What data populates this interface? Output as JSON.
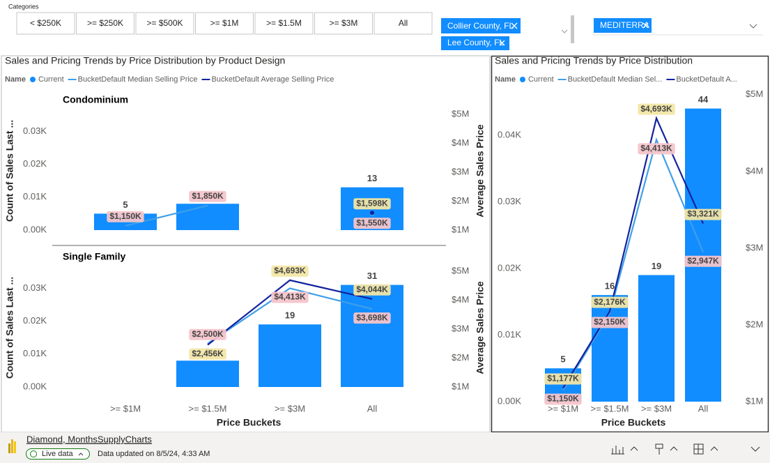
{
  "filters": {
    "label": "Categories",
    "buttons": [
      "< $250K",
      ">= $250K",
      ">= $500K",
      ">= $1M",
      ">= $1.5M",
      ">= $3M",
      "All"
    ]
  },
  "slicers": [
    {
      "chips": [
        "Collier County, FL",
        "Lee County, FL"
      ]
    },
    {
      "chips": [
        "MEDITERRA"
      ]
    }
  ],
  "footer": {
    "report": "Diamond, MonthsSupplyCharts",
    "status": "Live data",
    "updated": "Data updated on 8/5/24, 4:33 AM"
  },
  "chart_data": [
    {
      "type": "combo",
      "title": "Sales and Pricing Trends by Price Distribution by Product Design",
      "legend_title": "Name",
      "series": [
        {
          "name": "Current",
          "color": "#118DFF"
        },
        {
          "name": "BucketDefault Median Selling Price",
          "color": "#3F9FE8",
          "label_color": "#F4C5CB"
        },
        {
          "name": "BucketDefault Average Selling Price",
          "color": "#12239E",
          "label_color": "#F2E6A6"
        }
      ],
      "categories": [
        ">= $1M",
        ">= $1.5M",
        ">= $3M",
        "All"
      ],
      "xlabel": "Price Buckets",
      "ylabel": "Count of Sales Last ...",
      "y2label": "Average Sales Price",
      "panels": [
        {
          "title": "Condominium",
          "ylim": [
            0,
            36
          ],
          "yticks": [
            {
              "value": 0,
              "label": "0.00K"
            },
            {
              "value": 10,
              "label": "0.01K"
            },
            {
              "value": 20,
              "label": "0.02K"
            },
            {
              "value": 30,
              "label": "0.03K"
            }
          ],
          "y2lim": [
            1000000,
            5100000
          ],
          "y2ticks": [
            {
              "value": 1000000,
              "label": "$1M"
            },
            {
              "value": 2000000,
              "label": "$2M"
            },
            {
              "value": 3000000,
              "label": "$3M"
            },
            {
              "value": 4000000,
              "label": "$4M"
            },
            {
              "value": 5000000,
              "label": "$5M"
            }
          ],
          "series": [
            {
              "values": [
                5,
                8,
                null,
                13
              ]
            },
            {
              "values": [
                1150000,
                1850000,
                null,
                1550000
              ],
              "value_labels": [
                "$1,150K",
                "$1,850K",
                null,
                "$1,550K"
              ]
            },
            {
              "values": [
                null,
                null,
                null,
                1598000
              ],
              "value_labels": [
                null,
                null,
                null,
                "$1,598K"
              ]
            }
          ]
        },
        {
          "title": "Single Family",
          "ylim": [
            0,
            36
          ],
          "yticks": [
            {
              "value": 0,
              "label": "0.00K"
            },
            {
              "value": 10,
              "label": "0.01K"
            },
            {
              "value": 20,
              "label": "0.02K"
            },
            {
              "value": 30,
              "label": "0.03K"
            }
          ],
          "y2lim": [
            1000000,
            5100000
          ],
          "y2ticks": [
            {
              "value": 1000000,
              "label": "$1M"
            },
            {
              "value": 2000000,
              "label": "$2M"
            },
            {
              "value": 3000000,
              "label": "$3M"
            },
            {
              "value": 4000000,
              "label": "$4M"
            },
            {
              "value": 5000000,
              "label": "$5M"
            }
          ],
          "series": [
            {
              "values": [
                null,
                8,
                19,
                31
              ]
            },
            {
              "values": [
                null,
                2500000,
                4413000,
                3698000
              ],
              "value_labels": [
                null,
                "$2,500K",
                "$4,413K",
                "$3,698K"
              ]
            },
            {
              "values": [
                null,
                2456000,
                4693000,
                4044000
              ],
              "value_labels": [
                null,
                "$2,456K",
                "$4,693K",
                "$4,044K"
              ]
            }
          ]
        }
      ]
    },
    {
      "type": "combo",
      "title": "Sales and Pricing Trends by Price Distribution",
      "legend_title": "Name",
      "series": [
        {
          "name": "Current",
          "color": "#118DFF"
        },
        {
          "name": "BucketDefault Median Sel...",
          "color": "#3F9FE8",
          "label_color": "#F4C5CB"
        },
        {
          "name": "BucketDefault A...",
          "color": "#12239E",
          "label_color": "#F2E6A6"
        }
      ],
      "categories": [
        ">= $1M",
        ">= $1.5M",
        ">= $3M",
        "All"
      ],
      "xlabel": "Price Buckets",
      "panels": [
        {
          "ylim": [
            0,
            47
          ],
          "yticks": [
            {
              "value": 0,
              "label": "0.00K"
            },
            {
              "value": 10,
              "label": "0.01K"
            },
            {
              "value": 20,
              "label": "0.02K"
            },
            {
              "value": 30,
              "label": "0.03K"
            },
            {
              "value": 40,
              "label": "0.04K"
            }
          ],
          "y2lim": [
            1000000,
            5080000
          ],
          "y2ticks": [
            {
              "value": 1000000,
              "label": "$1M"
            },
            {
              "value": 2000000,
              "label": "$2M"
            },
            {
              "value": 3000000,
              "label": "$3M"
            },
            {
              "value": 4000000,
              "label": "$4M"
            },
            {
              "value": 5000000,
              "label": "$5M"
            }
          ],
          "series": [
            {
              "values": [
                5,
                16,
                19,
                44
              ]
            },
            {
              "values": [
                1150000,
                2150000,
                4413000,
                2947000
              ],
              "value_labels": [
                "$1,150K",
                "$2,150K",
                "$4,413K",
                "$2,947K"
              ]
            },
            {
              "values": [
                1177000,
                2176000,
                4693000,
                3321000
              ],
              "value_labels": [
                "$1,177K",
                "$2,176K",
                "$4,693K",
                "$3,321K"
              ]
            }
          ]
        }
      ]
    }
  ]
}
